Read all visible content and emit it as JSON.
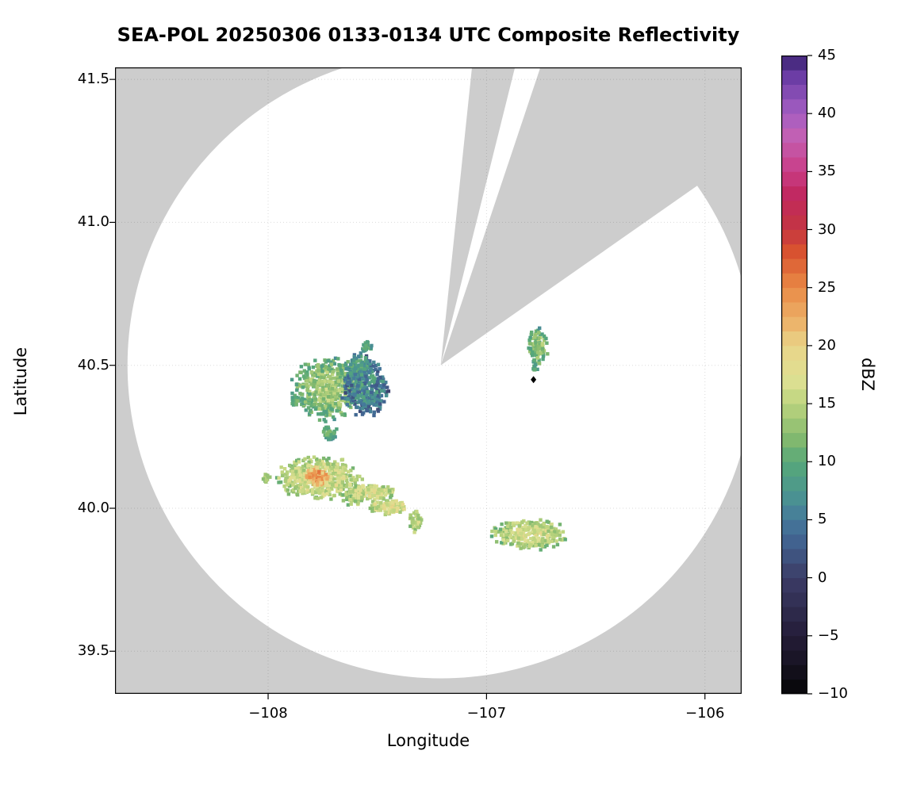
{
  "chart_data": {
    "type": "heatmap",
    "title": "SEA-POL 20250306 0133-0134 UTC Composite Reflectivity",
    "xlabel": "Longitude",
    "ylabel": "Latitude",
    "axes": {
      "lon_range": [
        -108.701,
        -105.832
      ],
      "lat_range": [
        39.351,
        41.542
      ],
      "x_ticks": [
        -108,
        -107,
        -106
      ],
      "x_tick_labels": [
        "−108",
        "−107",
        "−106"
      ],
      "y_ticks": [
        41.5,
        41.0,
        40.5,
        40.0,
        39.5
      ],
      "y_tick_labels": [
        "41.5",
        "41.0",
        "40.5",
        "40.0",
        "39.5"
      ],
      "grid": true
    },
    "colorbar": {
      "label": "dBZ",
      "range": [
        -10,
        45
      ],
      "step": 1.25,
      "ticks": [
        45,
        40,
        35,
        30,
        25,
        20,
        15,
        10,
        5,
        0,
        -5,
        -10
      ],
      "tick_labels": [
        "45",
        "40",
        "35",
        "30",
        "25",
        "20",
        "15",
        "10",
        "5",
        "0",
        "−5",
        "−10"
      ]
    },
    "colors": {
      "no_coverage": "#cdcdcd",
      "coverage": "#ffffff",
      "frame": "#000000"
    },
    "colormap_stops": [
      [
        -10,
        "#060606"
      ],
      [
        -7,
        "#191526"
      ],
      [
        -5,
        "#241c38"
      ],
      [
        -2,
        "#323055"
      ],
      [
        0,
        "#3c3c66"
      ],
      [
        3,
        "#41608e"
      ],
      [
        5,
        "#45799b"
      ],
      [
        7,
        "#4a9391"
      ],
      [
        10,
        "#57a879"
      ],
      [
        12,
        "#83b96e"
      ],
      [
        15,
        "#bcd47e"
      ],
      [
        17,
        "#dde092"
      ],
      [
        20,
        "#e9d489"
      ],
      [
        22,
        "#ecb36a"
      ],
      [
        25,
        "#e98a46"
      ],
      [
        28,
        "#d9542f"
      ],
      [
        30,
        "#c43640"
      ],
      [
        33,
        "#c02860"
      ],
      [
        35,
        "#c93d85"
      ],
      [
        38,
        "#c360b3"
      ],
      [
        40,
        "#a55ec3"
      ],
      [
        43,
        "#6f3fa8"
      ],
      [
        45,
        "#3a2372"
      ]
    ],
    "radar_coverage": {
      "center_lon": -107.21,
      "center_lat": 40.5,
      "radius_deg_lat": 1.095,
      "blocked_azimuths_deg": [
        [
          6,
          14
        ],
        [
          18.5,
          55
        ]
      ]
    },
    "site_marker": {
      "lon": -106.785,
      "lat": 40.45,
      "shape": "diamond",
      "color": "#000000"
    },
    "echo_regions": [
      {
        "name": "nw-cluster-west-green",
        "lon": -107.725,
        "lat": 40.415,
        "rx_deg_lon": 0.155,
        "ry_deg_lat": 0.1,
        "rot_deg": -5,
        "dbz_base": 10,
        "dbz_peak": 4,
        "dbz_noise": 3,
        "cells": 520
      },
      {
        "name": "nw-cluster-east-blue",
        "lon": -107.555,
        "lat": 40.425,
        "rx_deg_lon": 0.105,
        "ry_deg_lat": 0.095,
        "rot_deg": 0,
        "dbz_base": 4,
        "dbz_peak": 3,
        "dbz_noise": 4,
        "cells": 340
      },
      {
        "name": "nw-knob",
        "lon": -107.585,
        "lat": 40.5,
        "rx_deg_lon": 0.05,
        "ry_deg_lat": 0.045,
        "rot_deg": 0,
        "dbz_base": 6,
        "dbz_peak": 3,
        "dbz_noise": 3,
        "cells": 95
      },
      {
        "name": "nw-dot-north",
        "lon": -107.55,
        "lat": 40.565,
        "rx_deg_lon": 0.022,
        "ry_deg_lat": 0.02,
        "rot_deg": 0,
        "dbz_base": 8,
        "dbz_peak": 2,
        "dbz_noise": 2,
        "cells": 24
      },
      {
        "name": "nw-dot-south",
        "lon": -107.72,
        "lat": 40.265,
        "rx_deg_lon": 0.035,
        "ry_deg_lat": 0.026,
        "rot_deg": 0,
        "dbz_base": 8,
        "dbz_peak": 3,
        "dbz_noise": 2,
        "cells": 40
      },
      {
        "name": "west-dot",
        "lon": -107.875,
        "lat": 40.375,
        "rx_deg_lon": 0.018,
        "ry_deg_lat": 0.018,
        "rot_deg": 0,
        "dbz_base": 10,
        "dbz_peak": 2,
        "dbz_noise": 2,
        "cells": 18
      },
      {
        "name": "sw-band",
        "lon": -107.765,
        "lat": 40.105,
        "rx_deg_lon": 0.175,
        "ry_deg_lat": 0.068,
        "rot_deg": 8,
        "dbz_base": 14,
        "dbz_peak": 3,
        "dbz_noise": 3,
        "cells": 440
      },
      {
        "name": "sw-band-orange-core",
        "lon": -107.775,
        "lat": 40.11,
        "rx_deg_lon": 0.055,
        "ry_deg_lat": 0.03,
        "rot_deg": 8,
        "dbz_base": 20,
        "dbz_peak": 5,
        "dbz_noise": 3,
        "cells": 95
      },
      {
        "name": "sw-band-tail",
        "lon": -107.6,
        "lat": 40.04,
        "rx_deg_lon": 0.06,
        "ry_deg_lat": 0.03,
        "rot_deg": 35,
        "dbz_base": 13,
        "dbz_peak": 2,
        "dbz_noise": 3,
        "cells": 70
      },
      {
        "name": "sw-dot-west",
        "lon": -108.005,
        "lat": 40.105,
        "rx_deg_lon": 0.016,
        "ry_deg_lat": 0.016,
        "rot_deg": 0,
        "dbz_base": 12,
        "dbz_peak": 2,
        "dbz_noise": 2,
        "cells": 14
      },
      {
        "name": "diag-streak-north",
        "lon": -107.52,
        "lat": 40.055,
        "rx_deg_lon": 0.105,
        "ry_deg_lat": 0.028,
        "rot_deg": -48,
        "dbz_base": 14,
        "dbz_peak": 3,
        "dbz_noise": 3,
        "cells": 135
      },
      {
        "name": "diag-streak-south",
        "lon": -107.445,
        "lat": 40.005,
        "rx_deg_lon": 0.085,
        "ry_deg_lat": 0.024,
        "rot_deg": -48,
        "dbz_base": 15,
        "dbz_peak": 3,
        "dbz_noise": 3,
        "cells": 105
      },
      {
        "name": "small-cell-south",
        "lon": -107.325,
        "lat": 39.955,
        "rx_deg_lon": 0.03,
        "ry_deg_lat": 0.038,
        "rot_deg": 0,
        "dbz_base": 14,
        "dbz_peak": 2,
        "dbz_noise": 3,
        "cells": 48
      },
      {
        "name": "se-band",
        "lon": -106.8,
        "lat": 39.91,
        "rx_deg_lon": 0.16,
        "ry_deg_lat": 0.05,
        "rot_deg": -12,
        "dbz_base": 13,
        "dbz_peak": 4,
        "dbz_noise": 3,
        "cells": 300
      },
      {
        "name": "ne-cell",
        "lon": -106.765,
        "lat": 40.565,
        "rx_deg_lon": 0.042,
        "ry_deg_lat": 0.062,
        "rot_deg": -15,
        "dbz_base": 10,
        "dbz_peak": 4,
        "dbz_noise": 3,
        "cells": 95
      },
      {
        "name": "ne-dot",
        "lon": -106.775,
        "lat": 40.49,
        "rx_deg_lon": 0.013,
        "ry_deg_lat": 0.013,
        "rot_deg": 0,
        "dbz_base": 9,
        "dbz_peak": 1,
        "dbz_noise": 2,
        "cells": 8
      }
    ]
  }
}
